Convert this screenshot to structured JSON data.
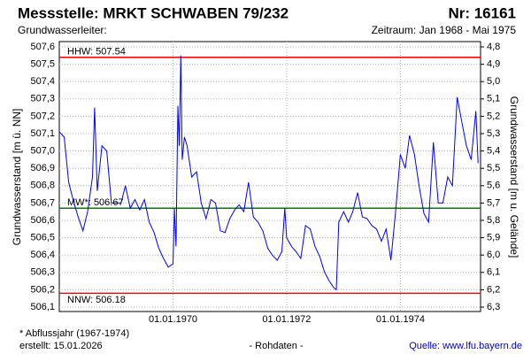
{
  "chart_data": {
    "type": "line",
    "title": "Messstelle: MRKT SCHWABEN 79/232",
    "number": "Nr: 16161",
    "subtitle_left": "Grundwasserleiter:",
    "subtitle_right": "Zeitraum: Jan 1968 - Mai 1975",
    "y_label": "Grundwasserstand [m ü. NN]",
    "y2_label": "Grundwasserstand [m u. Gelände]",
    "footnote": "* Abflussjahr (1967-1974)",
    "created": "erstellt:  15.01.2026",
    "raw_note": "- Rohdaten -",
    "source": "Quelle:  www.lfu.bayern.de",
    "xlim": [
      "1968-01-01",
      "1975-05-31"
    ],
    "xticks": [
      {
        "value": "1970-01-01",
        "label": "01.01.1970"
      },
      {
        "value": "1972-01-01",
        "label": "01.01.1972"
      },
      {
        "value": "1974-01-01",
        "label": "01.01.1974"
      }
    ],
    "ylim": [
      506.1,
      507.6
    ],
    "yticks": [
      {
        "value": 507.6,
        "label": "507,6"
      },
      {
        "value": 507.5,
        "label": "507,5"
      },
      {
        "value": 507.4,
        "label": "507,4"
      },
      {
        "value": 507.3,
        "label": "507,3"
      },
      {
        "value": 507.2,
        "label": "507,2"
      },
      {
        "value": 507.1,
        "label": "507,1"
      },
      {
        "value": 507.0,
        "label": "507,0"
      },
      {
        "value": 506.9,
        "label": "506,9"
      },
      {
        "value": 506.8,
        "label": "506,8"
      },
      {
        "value": 506.7,
        "label": "506,7"
      },
      {
        "value": 506.6,
        "label": "506,6"
      },
      {
        "value": 506.5,
        "label": "506,5"
      },
      {
        "value": 506.4,
        "label": "506,4"
      },
      {
        "value": 506.3,
        "label": "506,3"
      },
      {
        "value": 506.2,
        "label": "506,2"
      },
      {
        "value": 506.1,
        "label": "506,1"
      }
    ],
    "y2lim": [
      6.3,
      4.8
    ],
    "y2ticks": [
      {
        "value": 4.8,
        "label": "4,8"
      },
      {
        "value": 4.9,
        "label": "4,9"
      },
      {
        "value": 5.0,
        "label": "5,0"
      },
      {
        "value": 5.1,
        "label": "5,1"
      },
      {
        "value": 5.2,
        "label": "5,2"
      },
      {
        "value": 5.3,
        "label": "5,3"
      },
      {
        "value": 5.4,
        "label": "5,4"
      },
      {
        "value": 5.5,
        "label": "5,5"
      },
      {
        "value": 5.6,
        "label": "5,6"
      },
      {
        "value": 5.7,
        "label": "5,7"
      },
      {
        "value": 5.8,
        "label": "5,8"
      },
      {
        "value": 5.9,
        "label": "5,9"
      },
      {
        "value": 6.0,
        "label": "6,0"
      },
      {
        "value": 6.1,
        "label": "6,1"
      },
      {
        "value": 6.2,
        "label": "6,2"
      },
      {
        "value": 6.3,
        "label": "6,3"
      }
    ],
    "grid": true,
    "ref_lines": [
      {
        "label": "HHW: 507.54",
        "value": 507.54,
        "color": "#ff0000"
      },
      {
        "label": "MW*: 506.67",
        "value": 506.67,
        "color": "#008000"
      },
      {
        "label": "NNW: 506.18",
        "value": 506.18,
        "color": "#ff0000"
      }
    ],
    "color": "#0000ff",
    "x": [
      "1968-01-01",
      "1968-02-01",
      "1968-03-01",
      "1968-04-01",
      "1968-05-01",
      "1968-06-01",
      "1968-07-01",
      "1968-08-01",
      "1968-08-15",
      "1968-09-01",
      "1968-10-01",
      "1968-11-01",
      "1968-12-01",
      "1969-01-01",
      "1969-02-01",
      "1969-03-01",
      "1969-04-01",
      "1969-05-01",
      "1969-06-01",
      "1969-07-01",
      "1969-08-01",
      "1969-09-01",
      "1969-10-01",
      "1969-11-01",
      "1969-12-01",
      "1970-01-01",
      "1970-01-10",
      "1970-01-20",
      "1970-02-01",
      "1970-02-10",
      "1970-02-20",
      "1970-03-01",
      "1970-03-15",
      "1970-04-01",
      "1970-05-01",
      "1970-06-01",
      "1970-07-01",
      "1970-08-01",
      "1970-09-01",
      "1970-10-01",
      "1970-11-01",
      "1970-12-01",
      "1971-01-01",
      "1971-02-01",
      "1971-03-01",
      "1971-04-01",
      "1971-05-01",
      "1971-06-01",
      "1971-07-01",
      "1971-08-01",
      "1971-09-01",
      "1971-10-01",
      "1971-11-01",
      "1971-12-01",
      "1971-12-20",
      "1972-01-01",
      "1972-02-01",
      "1972-03-01",
      "1972-04-01",
      "1972-05-01",
      "1972-06-01",
      "1972-07-01",
      "1972-08-01",
      "1972-09-01",
      "1972-10-01",
      "1972-11-01",
      "1972-11-15",
      "1972-12-01",
      "1973-01-01",
      "1973-02-01",
      "1973-03-01",
      "1973-04-01",
      "1973-05-01",
      "1973-06-01",
      "1973-07-01",
      "1973-08-01",
      "1973-09-01",
      "1973-10-01",
      "1973-11-01",
      "1973-12-01",
      "1974-01-01",
      "1974-02-01",
      "1974-03-01",
      "1974-04-01",
      "1974-05-01",
      "1974-06-01",
      "1974-07-01",
      "1974-08-01",
      "1974-09-01",
      "1974-10-01",
      "1974-11-01",
      "1974-12-01",
      "1975-01-01",
      "1975-02-01",
      "1975-03-01",
      "1975-04-01",
      "1975-05-01",
      "1975-05-15"
    ],
    "values": [
      507.11,
      507.08,
      506.82,
      506.71,
      506.62,
      506.54,
      506.65,
      506.85,
      507.25,
      506.77,
      507.03,
      507.0,
      506.7,
      506.7,
      506.7,
      506.8,
      506.67,
      506.72,
      506.66,
      506.72,
      506.59,
      506.53,
      506.44,
      506.38,
      506.33,
      506.35,
      506.67,
      506.45,
      507.26,
      507.03,
      507.55,
      506.95,
      507.08,
      507.03,
      506.85,
      506.88,
      506.7,
      506.61,
      506.72,
      506.7,
      506.54,
      506.53,
      506.61,
      506.66,
      506.69,
      506.65,
      506.82,
      506.62,
      506.59,
      506.54,
      506.44,
      506.4,
      506.37,
      506.42,
      506.67,
      506.5,
      506.45,
      506.42,
      506.38,
      506.57,
      506.55,
      506.45,
      506.39,
      506.3,
      506.25,
      506.21,
      506.2,
      506.59,
      506.65,
      506.59,
      506.65,
      506.76,
      506.62,
      506.61,
      506.57,
      506.55,
      506.48,
      506.55,
      506.37,
      506.65,
      506.98,
      506.9,
      507.09,
      506.98,
      506.8,
      506.64,
      506.59,
      507.05,
      506.7,
      506.7,
      506.85,
      506.8,
      507.31,
      507.16,
      507.03,
      506.95,
      507.23,
      506.93
    ]
  }
}
